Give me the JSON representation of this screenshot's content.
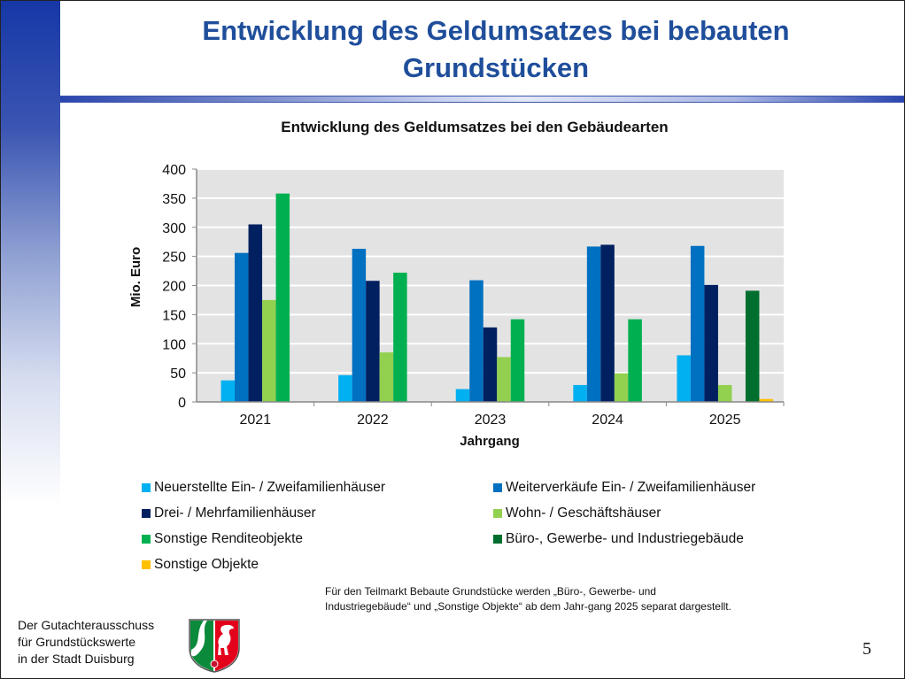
{
  "slide": {
    "title_line1": "Entwicklung des Geldumsatzes bei bebauten",
    "title_line2": "Grundstücken",
    "page_number": "5",
    "footnote_line1": "Für den Teilmarkt Bebaute Grundstücke werden „Büro-, Gewerbe- und",
    "footnote_line2": "Industriegebäude“ und „Sonstige Objekte“ ab dem Jahr-gang 2025 separat dargestellt.",
    "org_line1": "Der Gutachterausschuss",
    "org_line2": "für Grundstückswerte",
    "org_line3": "in der Stadt Duisburg",
    "logo": "nrw-coat-of-arms-icon",
    "colors": {
      "title": "#1f4e9b",
      "accent": "#1637a6"
    }
  },
  "chart_data": {
    "type": "bar",
    "title": "Entwicklung des Geldumsatzes bei den Gebäudearten",
    "xlabel": "Jahrgang",
    "ylabel": "Mio. Euro",
    "ylim": [
      0,
      400
    ],
    "yticks": [
      "0",
      "50",
      "100",
      "150",
      "200",
      "250",
      "300",
      "350",
      "400"
    ],
    "grid": true,
    "legend_position": "bottom",
    "categories": [
      "2021",
      "2022",
      "2023",
      "2024",
      "2025"
    ],
    "series": [
      {
        "name": "Neuerstellte Ein- / Zweifamilienhäuser",
        "color": "#00b0f0",
        "values": [
          37,
          46,
          22,
          29,
          80
        ]
      },
      {
        "name": "Weiterverkäufe Ein- / Zweifamilienhäuser",
        "color": "#0070c0",
        "values": [
          256,
          263,
          209,
          267,
          268
        ]
      },
      {
        "name": "Drei- / Mehrfamilienhäuser",
        "color": "#002060",
        "values": [
          305,
          208,
          128,
          270,
          201
        ]
      },
      {
        "name": "Wohn- / Geschäftshäuser",
        "color": "#92d050",
        "values": [
          175,
          85,
          77,
          49,
          29
        ]
      },
      {
        "name": "Sonstige Renditeobjekte",
        "color": "#00b050",
        "values": [
          358,
          222,
          142,
          142,
          0
        ]
      },
      {
        "name": "Büro-, Gewerbe- und Industriegebäude",
        "color": "#006e2e",
        "values": [
          null,
          null,
          null,
          null,
          191
        ]
      },
      {
        "name": "Sonstige Objekte",
        "color": "#ffc000",
        "values": [
          null,
          null,
          null,
          null,
          5
        ]
      }
    ]
  }
}
